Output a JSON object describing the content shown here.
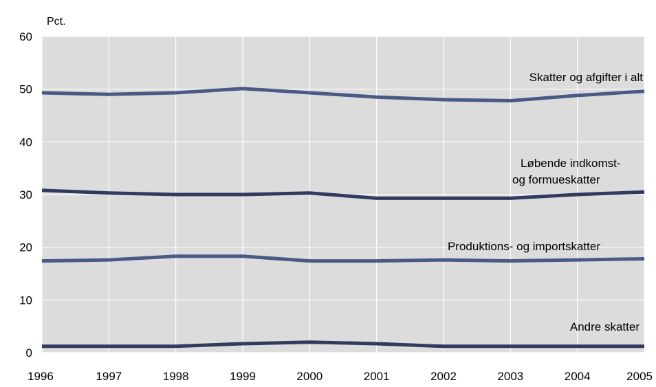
{
  "chart_data": {
    "type": "line",
    "title": "",
    "xlabel": "",
    "ylabel": "Pct.",
    "x": [
      "1996",
      "1997",
      "1998",
      "1999",
      "2000",
      "2001",
      "2002",
      "2003",
      "2004",
      "2005"
    ],
    "ylim": [
      0,
      60
    ],
    "yticks": [
      "0",
      "10",
      "20",
      "30",
      "40",
      "50",
      "60"
    ],
    "grid": true,
    "series": [
      {
        "name": "Skatter og afgifter i alt",
        "label_lines": [
          "Skatter og afgifter i alt"
        ],
        "color": "#4a5a87",
        "values": [
          49.3,
          49.0,
          49.3,
          50.1,
          49.3,
          48.5,
          48.0,
          47.8,
          48.8,
          49.6
        ]
      },
      {
        "name": "Løbende indkomst- og formueskatter",
        "label_lines": [
          "Løbende indkomst-",
          "og formueskatter"
        ],
        "color": "#2f3c5e",
        "values": [
          30.8,
          30.3,
          30.0,
          30.0,
          30.3,
          29.3,
          29.3,
          29.3,
          30.0,
          30.5
        ]
      },
      {
        "name": "Produktions- og importskatter",
        "label_lines": [
          "Produktions- og importskatter"
        ],
        "color": "#4a5a87",
        "values": [
          17.4,
          17.6,
          18.3,
          18.3,
          17.4,
          17.4,
          17.6,
          17.4,
          17.6,
          17.8
        ]
      },
      {
        "name": "Andre skatter",
        "label_lines": [
          "Andre skatter"
        ],
        "color": "#2f3c5e",
        "values": [
          1.2,
          1.2,
          1.2,
          1.7,
          2.0,
          1.7,
          1.2,
          1.2,
          1.2,
          1.2
        ]
      }
    ]
  }
}
